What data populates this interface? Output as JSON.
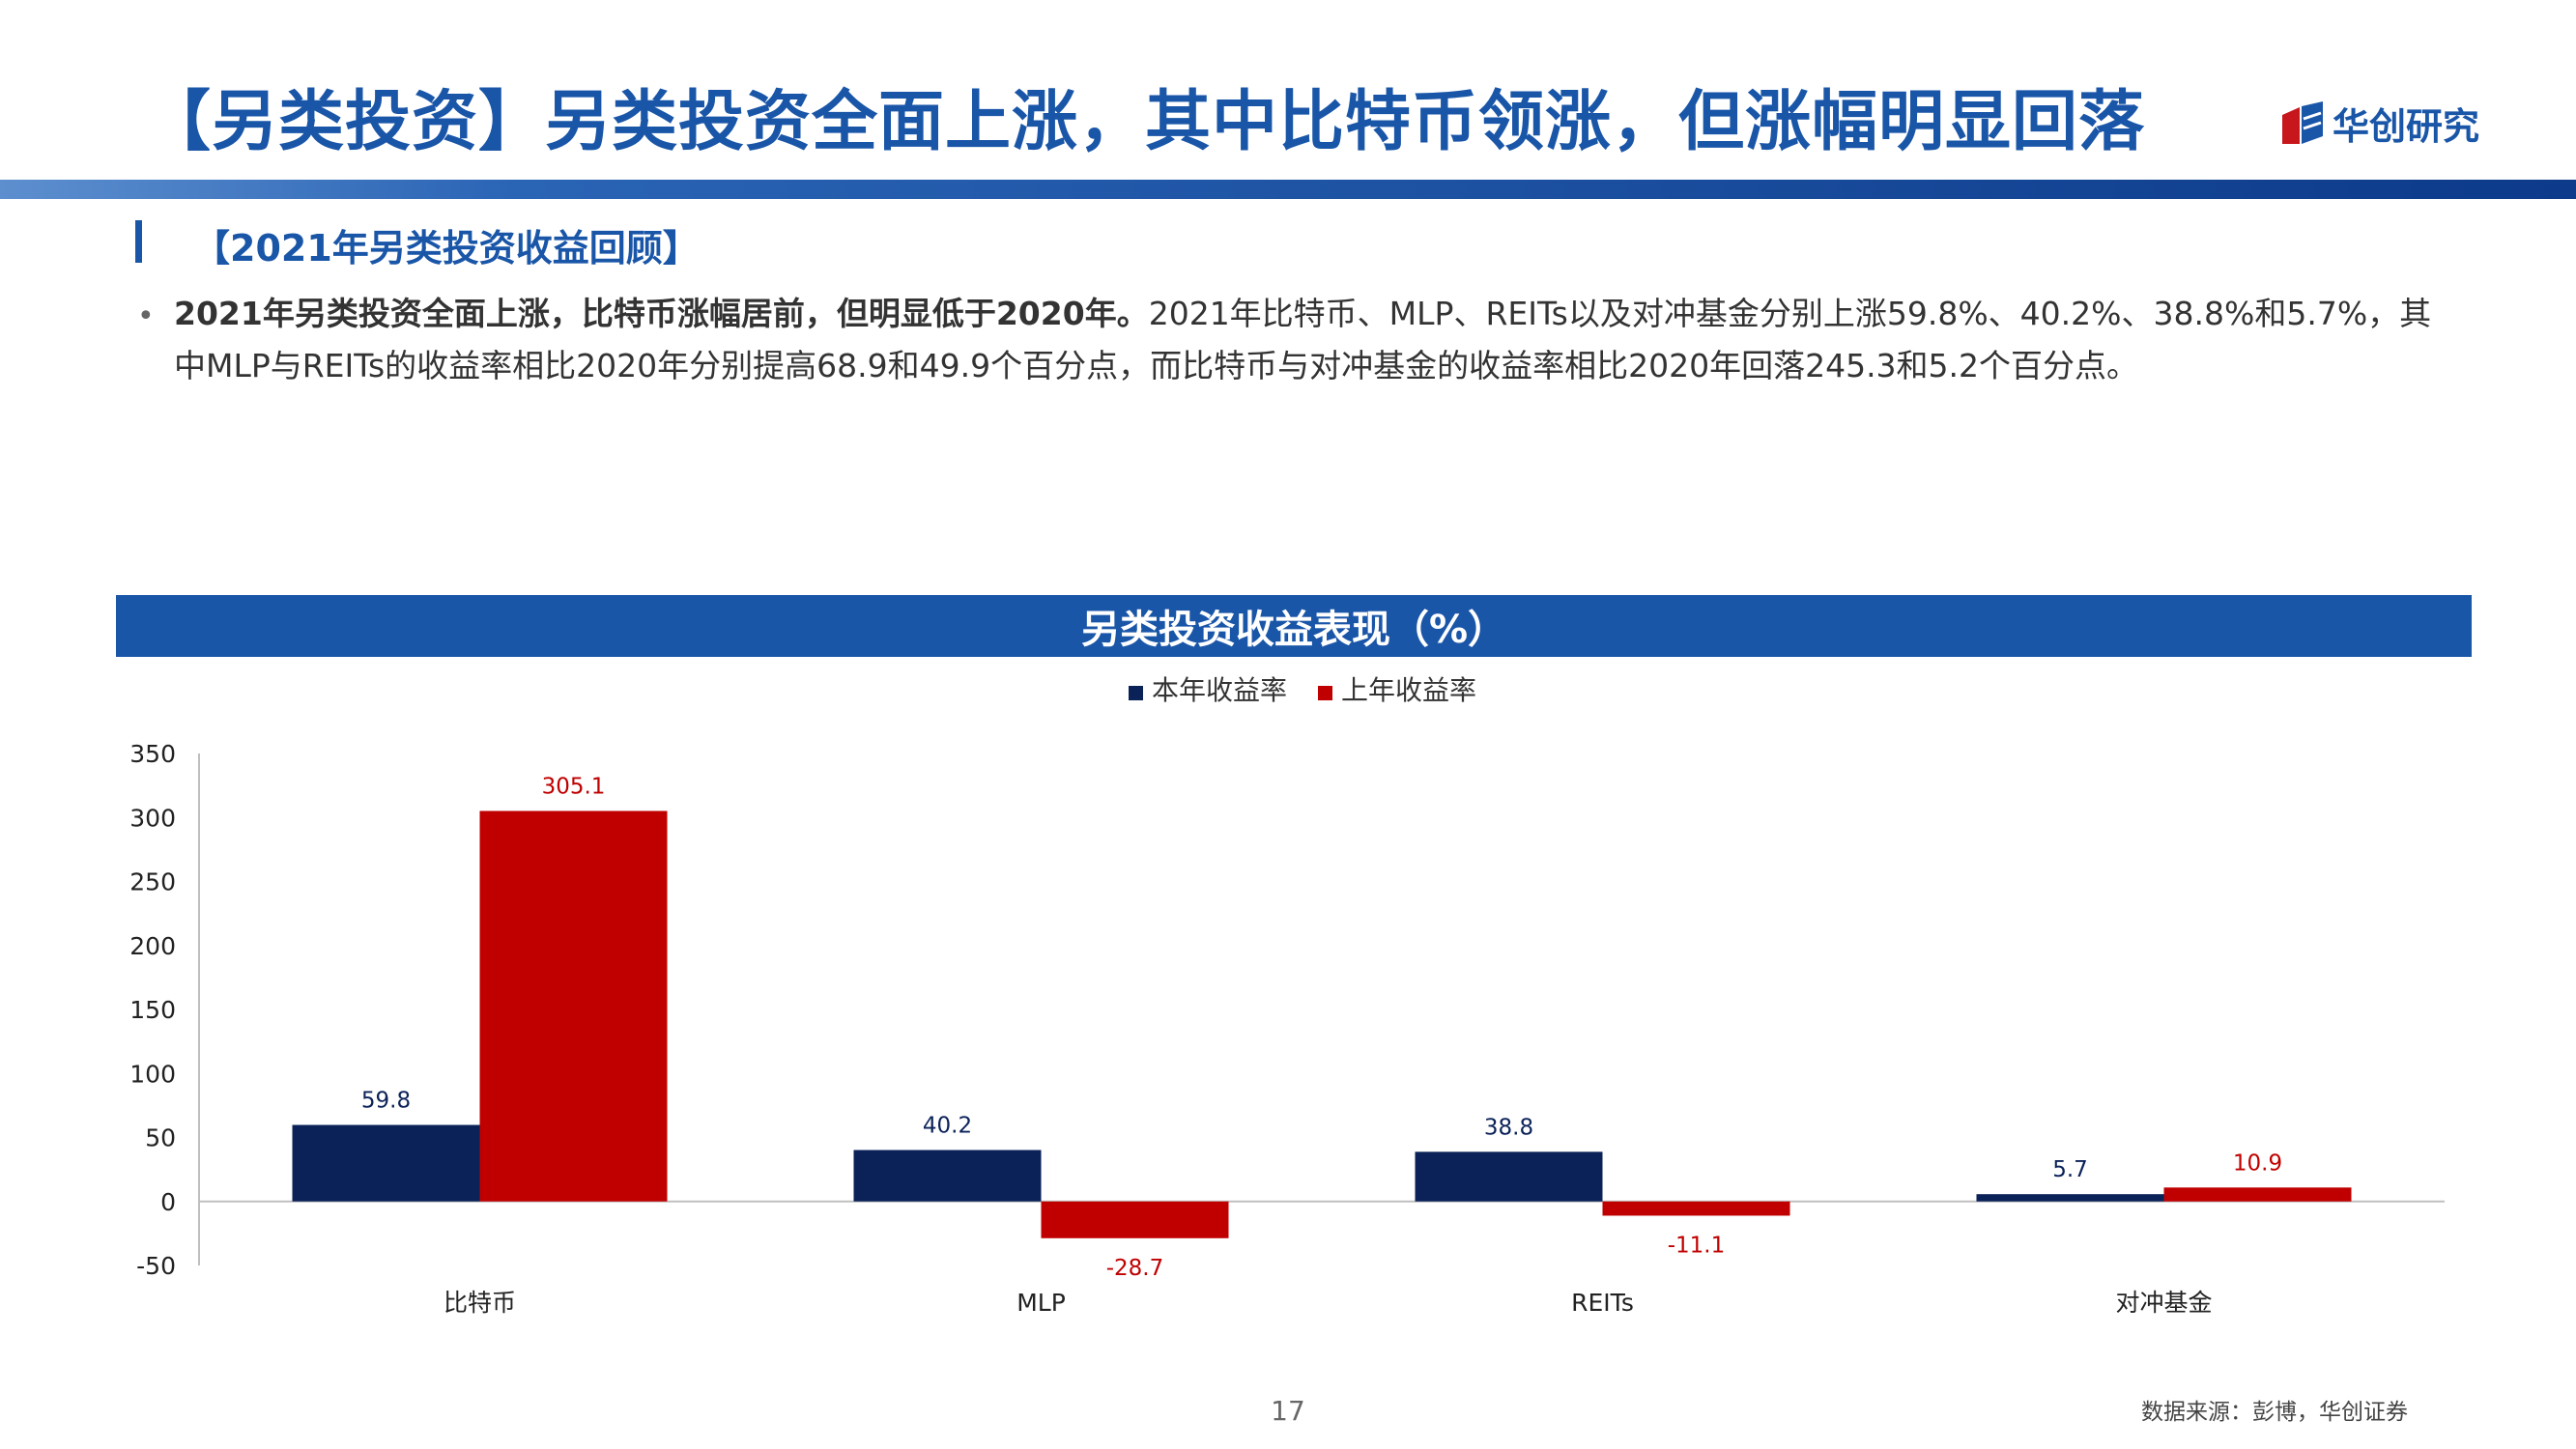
{
  "title": "【另类投资】另类投资全面上涨，其中比特币领涨，但涨幅明显回落",
  "logo": {
    "text": "华创研究",
    "colors": [
      "#c8161d",
      "#1a56a8"
    ]
  },
  "section": {
    "heading": "【2021年另类投资收益回顾】"
  },
  "bullet": {
    "bold": "2021年另类投资全面上涨，比特币涨幅居前，但明显低于2020年。",
    "text": "2021年比特币、MLP、REITs以及对冲基金分别上涨59.8%、40.2%、38.8%和5.7%，其中MLP与REITs的收益率相比2020年分别提高68.9和49.9个百分点，而比特币与对冲基金的收益率相比2020年回落245.3和5.2个百分点。"
  },
  "chart_banner": "另类投资收益表现（%）",
  "chart_data": {
    "type": "bar",
    "title": "另类投资收益表现（%）",
    "categories": [
      "比特币",
      "MLP",
      "REITs",
      "对冲基金"
    ],
    "series": [
      {
        "name": "本年收益率",
        "color": "#0b2258",
        "values": [
          59.8,
          40.2,
          38.8,
          5.7
        ]
      },
      {
        "name": "上年收益率",
        "color": "#c00000",
        "values": [
          305.1,
          -28.7,
          -11.1,
          10.9
        ]
      }
    ],
    "ylim": [
      -50,
      350
    ],
    "yticks": [
      -50,
      0,
      50,
      100,
      150,
      200,
      250,
      300,
      350
    ],
    "legend": "top-center",
    "grid": false
  },
  "page_number": "17",
  "source": "数据来源：彭博，华创证券"
}
